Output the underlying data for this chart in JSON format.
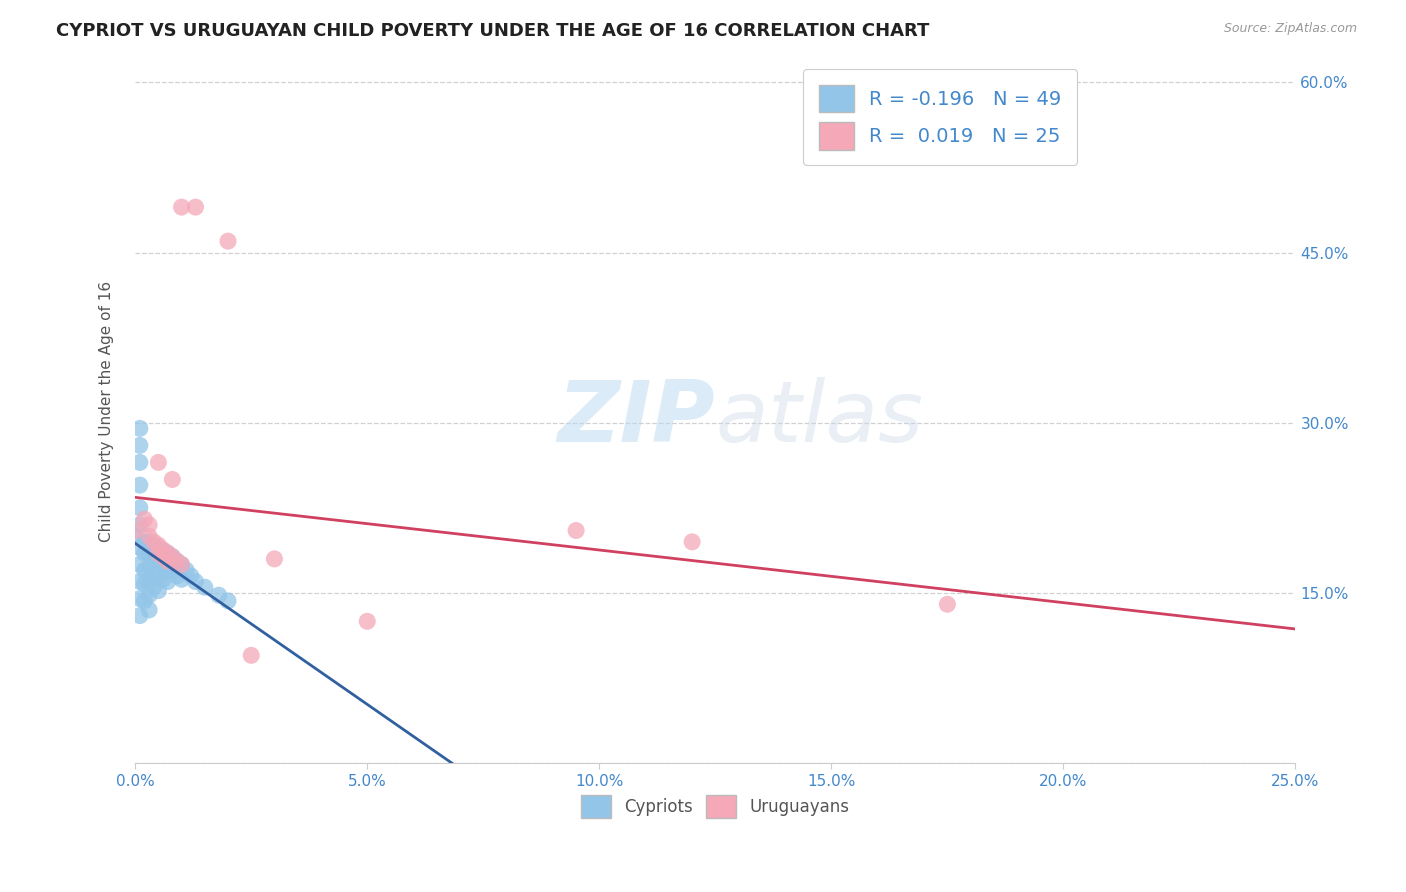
{
  "title": "CYPRIOT VS URUGUAYAN CHILD POVERTY UNDER THE AGE OF 16 CORRELATION CHART",
  "source": "Source: ZipAtlas.com",
  "ylabel": "Child Poverty Under the Age of 16",
  "xlim": [
    0.0,
    0.25
  ],
  "ylim": [
    0.0,
    0.62
  ],
  "xticks": [
    0.0,
    0.05,
    0.1,
    0.15,
    0.2,
    0.25
  ],
  "yticks": [
    0.0,
    0.15,
    0.3,
    0.45,
    0.6
  ],
  "xticklabels": [
    "0.0%",
    "5.0%",
    "10.0%",
    "15.0%",
    "20.0%",
    "25.0%"
  ],
  "yticklabels_right": [
    "",
    "15.0%",
    "30.0%",
    "45.0%",
    "60.0%"
  ],
  "legend_R_cypriot": "-0.196",
  "legend_N_cypriot": "49",
  "legend_R_uruguayan": "0.019",
  "legend_N_uruguayan": "25",
  "cypriot_color": "#92c5e8",
  "uruguayan_color": "#f4a8b8",
  "cypriot_line_color": "#3060a0",
  "uruguayan_line_color": "#d04060",
  "background_color": "#ffffff",
  "grid_color": "#cccccc",
  "cypriot_points": [
    [
      0.0,
      0.2
    ],
    [
      0.001,
      0.295
    ],
    [
      0.001,
      0.28
    ],
    [
      0.001,
      0.265
    ],
    [
      0.001,
      0.245
    ],
    [
      0.001,
      0.225
    ],
    [
      0.001,
      0.21
    ],
    [
      0.001,
      0.19
    ],
    [
      0.001,
      0.175
    ],
    [
      0.001,
      0.16
    ],
    [
      0.001,
      0.145
    ],
    [
      0.001,
      0.13
    ],
    [
      0.002,
      0.195
    ],
    [
      0.002,
      0.185
    ],
    [
      0.002,
      0.17
    ],
    [
      0.002,
      0.158
    ],
    [
      0.002,
      0.143
    ],
    [
      0.003,
      0.195
    ],
    [
      0.003,
      0.185
    ],
    [
      0.003,
      0.172
    ],
    [
      0.003,
      0.16
    ],
    [
      0.003,
      0.148
    ],
    [
      0.003,
      0.135
    ],
    [
      0.004,
      0.192
    ],
    [
      0.004,
      0.182
    ],
    [
      0.004,
      0.168
    ],
    [
      0.004,
      0.155
    ],
    [
      0.005,
      0.19
    ],
    [
      0.005,
      0.178
    ],
    [
      0.005,
      0.165
    ],
    [
      0.005,
      0.152
    ],
    [
      0.006,
      0.187
    ],
    [
      0.006,
      0.175
    ],
    [
      0.006,
      0.162
    ],
    [
      0.007,
      0.185
    ],
    [
      0.007,
      0.172
    ],
    [
      0.007,
      0.16
    ],
    [
      0.008,
      0.182
    ],
    [
      0.008,
      0.17
    ],
    [
      0.009,
      0.178
    ],
    [
      0.009,
      0.165
    ],
    [
      0.01,
      0.175
    ],
    [
      0.01,
      0.162
    ],
    [
      0.011,
      0.17
    ],
    [
      0.012,
      0.165
    ],
    [
      0.013,
      0.16
    ],
    [
      0.015,
      0.155
    ],
    [
      0.018,
      0.148
    ],
    [
      0.02,
      0.143
    ]
  ],
  "uruguayan_points": [
    [
      0.01,
      0.49
    ],
    [
      0.013,
      0.49
    ],
    [
      0.02,
      0.46
    ],
    [
      0.005,
      0.265
    ],
    [
      0.008,
      0.25
    ],
    [
      0.0,
      0.205
    ],
    [
      0.002,
      0.215
    ],
    [
      0.003,
      0.21
    ],
    [
      0.003,
      0.2
    ],
    [
      0.004,
      0.195
    ],
    [
      0.005,
      0.192
    ],
    [
      0.005,
      0.185
    ],
    [
      0.006,
      0.188
    ],
    [
      0.006,
      0.182
    ],
    [
      0.007,
      0.185
    ],
    [
      0.007,
      0.178
    ],
    [
      0.008,
      0.182
    ],
    [
      0.009,
      0.178
    ],
    [
      0.01,
      0.175
    ],
    [
      0.095,
      0.205
    ],
    [
      0.12,
      0.195
    ],
    [
      0.175,
      0.14
    ],
    [
      0.05,
      0.125
    ],
    [
      0.025,
      0.095
    ],
    [
      0.03,
      0.18
    ]
  ]
}
